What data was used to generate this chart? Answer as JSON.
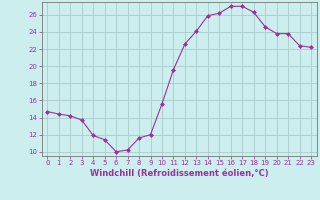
{
  "x": [
    0,
    1,
    2,
    3,
    4,
    5,
    6,
    7,
    8,
    9,
    10,
    11,
    12,
    13,
    14,
    15,
    16,
    17,
    18,
    19,
    20,
    21,
    22,
    23
  ],
  "y": [
    14.7,
    14.4,
    14.2,
    13.7,
    11.9,
    11.4,
    10.0,
    10.2,
    11.6,
    12.0,
    15.6,
    19.6,
    22.6,
    24.1,
    25.9,
    26.2,
    27.0,
    27.0,
    26.3,
    24.6,
    23.8,
    23.8,
    22.4,
    22.2
  ],
  "line_color": "#993399",
  "marker": "D",
  "marker_size": 2.0,
  "bg_color": "#cceeee",
  "grid_color": "#aacccc",
  "spine_color": "#777777",
  "xlabel": "Windchill (Refroidissement éolien,°C)",
  "xlabel_color": "#993399",
  "tick_color": "#993399",
  "ylim": [
    9.5,
    27.5
  ],
  "yticks": [
    10,
    12,
    14,
    16,
    18,
    20,
    22,
    24,
    26
  ],
  "xlim": [
    -0.5,
    23.5
  ],
  "xticks": [
    0,
    1,
    2,
    3,
    4,
    5,
    6,
    7,
    8,
    9,
    10,
    11,
    12,
    13,
    14,
    15,
    16,
    17,
    18,
    19,
    20,
    21,
    22,
    23
  ],
  "tick_fontsize": 5.0,
  "xlabel_fontsize": 6.0
}
